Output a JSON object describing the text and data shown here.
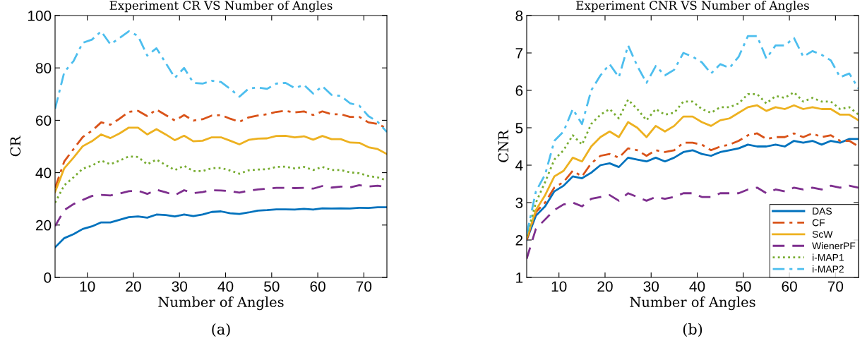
{
  "chart_data": [
    {
      "type": "line",
      "title": "Experiment CR VS Number of Angles",
      "xlabel": "Number of Angles",
      "ylabel": "CR",
      "annotations": [
        "(a)"
      ],
      "x": [
        3,
        5,
        7,
        9,
        11,
        13,
        15,
        17,
        19,
        21,
        23,
        25,
        27,
        29,
        31,
        33,
        35,
        37,
        39,
        41,
        43,
        45,
        47,
        49,
        51,
        53,
        55,
        57,
        59,
        61,
        63,
        65,
        67,
        69,
        71,
        73,
        75
      ],
      "xlim": [
        3,
        75
      ],
      "xticks": [
        10,
        20,
        30,
        40,
        50,
        60,
        70
      ],
      "ylim": [
        0,
        100
      ],
      "yticks": [
        0,
        20,
        40,
        60,
        80,
        100
      ],
      "grid": false,
      "series": [
        {
          "color": "#0072bd",
          "line_style": "solid",
          "values": [
            11.5,
            15,
            16.5,
            18.5,
            19.5,
            21,
            21,
            22,
            23,
            23.3,
            22.8,
            24,
            23.8,
            23.3,
            24,
            23.4,
            24,
            25,
            25.2,
            24.5,
            24.2,
            24.8,
            25.5,
            25.7,
            26,
            26,
            25.9,
            26.2,
            25.9,
            26.4,
            26.3,
            26.4,
            26.3,
            26.6,
            26.5,
            26.8,
            26.8
          ]
        },
        {
          "color": "#d95319",
          "line_style": "dashdot",
          "values": [
            34.2,
            44.3,
            49,
            53.6,
            56,
            59.2,
            58.3,
            60.6,
            63.2,
            63.6,
            61.6,
            64.1,
            62,
            59.9,
            62,
            59.9,
            60.4,
            61.8,
            62,
            60.6,
            59.4,
            61.1,
            61.8,
            62.3,
            63.2,
            63.6,
            63,
            63.4,
            62,
            63.4,
            62.3,
            62.3,
            61.3,
            61.3,
            59.2,
            58.6,
            56.9
          ]
        },
        {
          "color": "#edb120",
          "line_style": "solid",
          "values": [
            32.6,
            41.7,
            45.7,
            50.1,
            52,
            54.6,
            53.2,
            55,
            57.2,
            57.2,
            54.6,
            56.6,
            54.6,
            52.4,
            54.1,
            52,
            52.2,
            53.5,
            53.5,
            52.2,
            50.8,
            52.5,
            53,
            53.1,
            54,
            54.1,
            53.5,
            53.9,
            52.6,
            54,
            52.8,
            52.8,
            51.5,
            51.4,
            49.7,
            49,
            47.1
          ]
        },
        {
          "color": "#7e2f8e",
          "line_style": "dashed",
          "values": [
            19.6,
            25.7,
            28,
            29.6,
            31.1,
            31.5,
            31.3,
            32,
            32.9,
            33.1,
            31.9,
            33.5,
            32.5,
            31.4,
            33.3,
            32.2,
            32.6,
            33.3,
            33.2,
            32.9,
            32.4,
            33.1,
            33.6,
            33.9,
            34.2,
            34.2,
            34.1,
            34.2,
            33.9,
            34.9,
            34.3,
            34.7,
            34.4,
            35.2,
            34.7,
            35,
            34.5
          ]
        },
        {
          "color": "#77ac30",
          "line_style": "dotted",
          "values": [
            28.5,
            35.2,
            38.2,
            41.5,
            42.7,
            44.6,
            43.2,
            44.6,
            46.2,
            46,
            43.2,
            45,
            42.9,
            41,
            42.6,
            40.6,
            40.6,
            41.7,
            41.8,
            40.8,
            39.6,
            40.9,
            41.2,
            41.3,
            42.2,
            42.3,
            41.6,
            42.2,
            41,
            42.2,
            41,
            41,
            40.1,
            39.8,
            38.7,
            38.2,
            37
          ]
        },
        {
          "color": "#4dbeee",
          "line_style": "dashdot",
          "values": [
            64.4,
            78.4,
            82.6,
            89.6,
            90.8,
            94,
            89,
            91.4,
            94,
            92.2,
            84.7,
            87.5,
            81.9,
            76.2,
            80,
            74.3,
            74,
            75.1,
            74.6,
            72,
            69,
            72.1,
            72.5,
            72,
            74,
            74.3,
            72.3,
            73.5,
            70.2,
            73,
            69.7,
            69.3,
            66.5,
            65.6,
            61.6,
            59.4,
            55.5
          ]
        }
      ]
    },
    {
      "type": "line",
      "title": "Experiment CNR VS Number of Angles",
      "xlabel": "Number of Angles",
      "ylabel": "CNR",
      "annotations": [
        "(b)"
      ],
      "x": [
        3,
        5,
        7,
        9,
        11,
        13,
        15,
        17,
        19,
        21,
        23,
        25,
        27,
        29,
        31,
        33,
        35,
        37,
        39,
        41,
        43,
        45,
        47,
        49,
        51,
        53,
        55,
        57,
        59,
        61,
        63,
        65,
        67,
        69,
        71,
        73,
        75
      ],
      "xlim": [
        3,
        75
      ],
      "xticks": [
        10,
        20,
        30,
        40,
        50,
        60,
        70
      ],
      "ylim": [
        1,
        8
      ],
      "yticks": [
        1,
        2,
        3,
        4,
        5,
        6,
        7,
        8
      ],
      "grid": false,
      "legend": "bottom right",
      "series": [
        {
          "name": "DAS",
          "color": "#0072bd",
          "line_style": "solid",
          "values": [
            2.0,
            2.65,
            2.9,
            3.3,
            3.45,
            3.7,
            3.65,
            3.8,
            4.0,
            4.05,
            3.95,
            4.2,
            4.15,
            4.1,
            4.2,
            4.1,
            4.2,
            4.35,
            4.4,
            4.3,
            4.25,
            4.35,
            4.4,
            4.45,
            4.55,
            4.5,
            4.5,
            4.55,
            4.5,
            4.65,
            4.6,
            4.65,
            4.55,
            4.65,
            4.6,
            4.7,
            4.7
          ]
        },
        {
          "name": "CF",
          "color": "#d95319",
          "line_style": "dashdot",
          "values": [
            2.0,
            2.75,
            3.0,
            3.4,
            3.55,
            3.85,
            3.7,
            4.05,
            4.25,
            4.3,
            4.2,
            4.45,
            4.4,
            4.25,
            4.4,
            4.35,
            4.4,
            4.6,
            4.6,
            4.55,
            4.4,
            4.5,
            4.55,
            4.65,
            4.8,
            4.85,
            4.7,
            4.75,
            4.75,
            4.85,
            4.75,
            4.85,
            4.75,
            4.8,
            4.65,
            4.65,
            4.5
          ]
        },
        {
          "name": "ScW",
          "color": "#edb120",
          "line_style": "solid",
          "values": [
            2.05,
            2.8,
            3.2,
            3.7,
            3.85,
            4.2,
            4.1,
            4.5,
            4.75,
            4.9,
            4.75,
            5.15,
            5.0,
            4.75,
            5.05,
            4.9,
            5.05,
            5.3,
            5.3,
            5.15,
            5.05,
            5.2,
            5.25,
            5.4,
            5.55,
            5.6,
            5.45,
            5.55,
            5.5,
            5.6,
            5.5,
            5.55,
            5.5,
            5.5,
            5.35,
            5.35,
            5.2
          ]
        },
        {
          "name": "WienerPF",
          "color": "#7e2f8e",
          "line_style": "dashed",
          "values": [
            1.5,
            2.3,
            2.55,
            2.8,
            2.95,
            3.0,
            2.9,
            3.1,
            3.15,
            3.2,
            3.05,
            3.25,
            3.15,
            3.05,
            3.15,
            3.1,
            3.15,
            3.25,
            3.25,
            3.15,
            3.15,
            3.25,
            3.25,
            3.25,
            3.35,
            3.4,
            3.25,
            3.35,
            3.3,
            3.4,
            3.35,
            3.4,
            3.35,
            3.45,
            3.4,
            3.45,
            3.4
          ]
        },
        {
          "name": "i-MAP1",
          "color": "#77ac30",
          "line_style": "dotted",
          "values": [
            2.1,
            3.0,
            3.55,
            4.15,
            4.4,
            4.8,
            4.55,
            5.1,
            5.35,
            5.5,
            5.25,
            5.75,
            5.5,
            5.2,
            5.5,
            5.35,
            5.4,
            5.7,
            5.7,
            5.5,
            5.4,
            5.55,
            5.55,
            5.65,
            5.9,
            5.9,
            5.65,
            5.85,
            5.8,
            5.95,
            5.7,
            5.8,
            5.7,
            5.7,
            5.5,
            5.55,
            5.35
          ]
        },
        {
          "name": "i-MAP2",
          "color": "#4dbeee",
          "line_style": "dashdot",
          "values": [
            2.15,
            3.3,
            3.75,
            4.65,
            4.9,
            5.5,
            5.1,
            6.0,
            6.4,
            6.7,
            6.35,
            7.2,
            6.65,
            6.2,
            6.65,
            6.4,
            6.55,
            7.0,
            6.9,
            6.75,
            6.45,
            6.7,
            6.6,
            6.9,
            7.45,
            7.45,
            6.85,
            7.2,
            7.2,
            7.4,
            6.9,
            7.05,
            6.95,
            6.8,
            6.35,
            6.45,
            6.05
          ]
        }
      ]
    }
  ]
}
